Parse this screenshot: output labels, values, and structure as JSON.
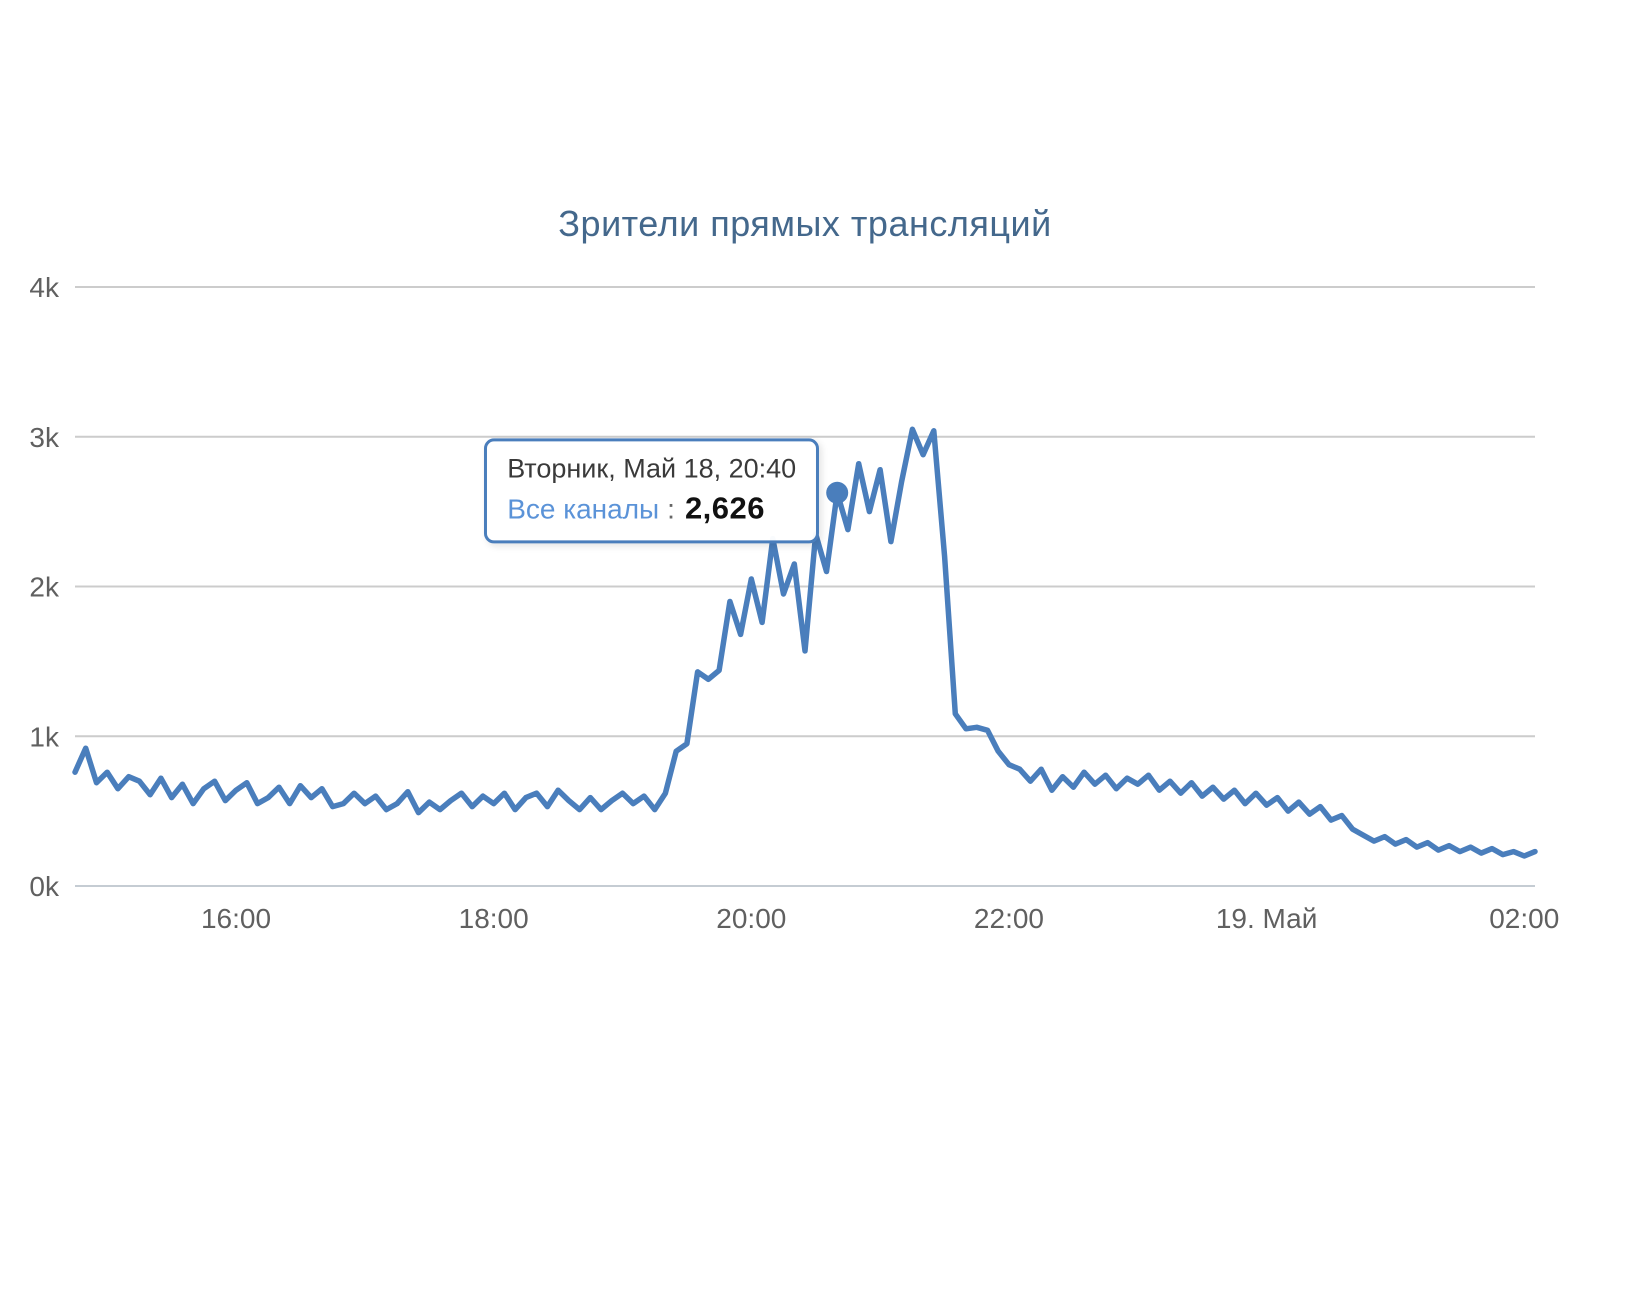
{
  "title": "Зрители прямых трансляций",
  "tooltip": {
    "date_label": "Вторник, Май 18, 20:40",
    "series_label": "Все каналы",
    "separator": ":",
    "value": "2,626"
  },
  "chart_data": {
    "type": "line",
    "title": "Зрители прямых трансляций",
    "series_name": "Все каналы",
    "line_color": "#4a7ebc",
    "series_label_color": "#5b93d8",
    "grid_color": "#cccccc",
    "axis_line_color": "#c5ccd3",
    "label_color": "#606060",
    "title_color": "#44688c",
    "background": "#ffffff",
    "legend": "none",
    "grid": "horizontal",
    "ylim": [
      0,
      4000
    ],
    "y_ticks": [
      {
        "value": 0,
        "label": "0k"
      },
      {
        "value": 1000,
        "label": "1k"
      },
      {
        "value": 2000,
        "label": "2k"
      },
      {
        "value": 3000,
        "label": "3k"
      },
      {
        "value": 4000,
        "label": "4k"
      }
    ],
    "x_ticks": [
      {
        "minute": 960,
        "label": "16:00"
      },
      {
        "minute": 1080,
        "label": "18:00"
      },
      {
        "minute": 1200,
        "label": "20:00"
      },
      {
        "minute": 1320,
        "label": "22:00"
      },
      {
        "minute": 1440,
        "label": "19. Май"
      },
      {
        "minute": 1560,
        "label": "02:00"
      }
    ],
    "x_start_minute": 885,
    "x_end_minute": 1565,
    "step_minutes": 5,
    "values": [
      760,
      920,
      690,
      760,
      650,
      730,
      700,
      610,
      720,
      590,
      680,
      550,
      650,
      700,
      570,
      640,
      690,
      550,
      590,
      660,
      550,
      670,
      590,
      650,
      530,
      550,
      620,
      550,
      600,
      510,
      550,
      630,
      490,
      560,
      510,
      570,
      620,
      530,
      600,
      550,
      620,
      510,
      590,
      620,
      530,
      640,
      570,
      510,
      590,
      510,
      570,
      620,
      550,
      600,
      510,
      620,
      900,
      950,
      1430,
      1380,
      1440,
      1900,
      1680,
      2050,
      1760,
      2320,
      1950,
      2150,
      1570,
      2350,
      2100,
      2626,
      2380,
      2820,
      2500,
      2780,
      2300,
      2700,
      3050,
      2880,
      3040,
      2200,
      1150,
      1050,
      1060,
      1040,
      900,
      810,
      780,
      700,
      780,
      640,
      730,
      660,
      760,
      680,
      740,
      650,
      720,
      680,
      740,
      640,
      700,
      620,
      690,
      600,
      660,
      580,
      640,
      550,
      620,
      540,
      590,
      500,
      560,
      480,
      530,
      440,
      470,
      380,
      340,
      300,
      330,
      280,
      310,
      260,
      290,
      240,
      270,
      230,
      260,
      220,
      250,
      210,
      230,
      200,
      230
    ],
    "highlight": {
      "minute": 1240,
      "value": 2626,
      "time_label": "20:40"
    }
  }
}
